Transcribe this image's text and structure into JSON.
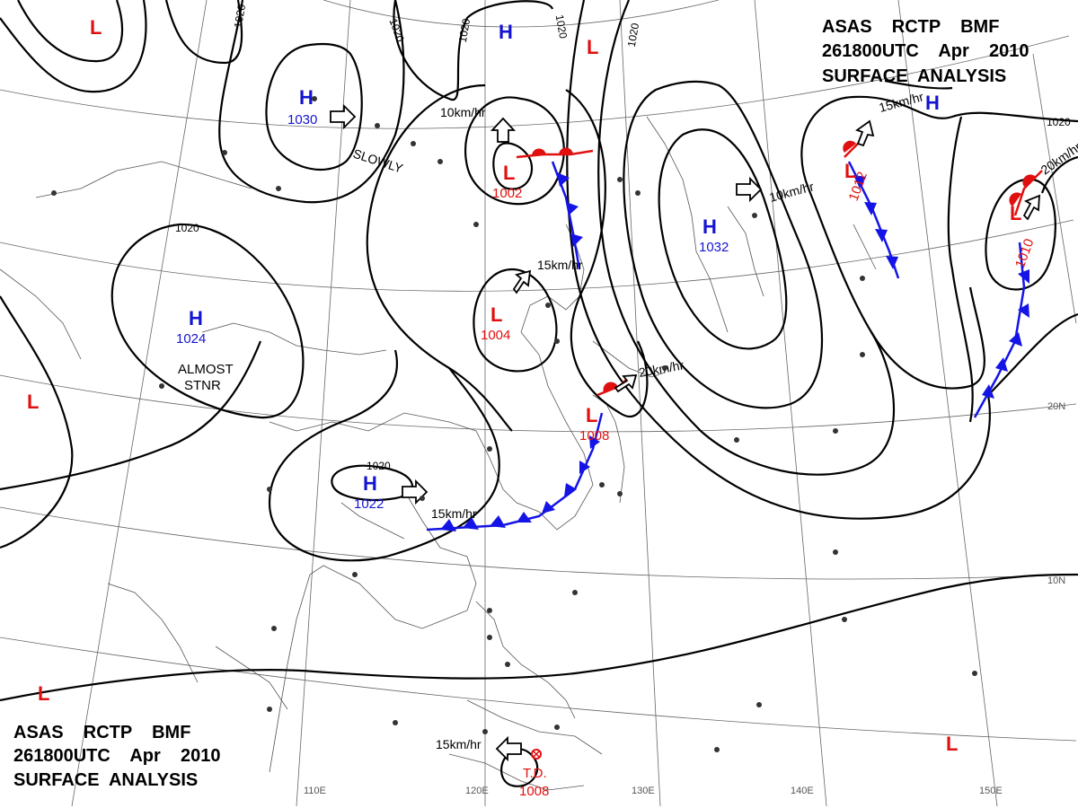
{
  "header_top": {
    "line1": "ASAS    RCTP    BMF",
    "line2": "261800UTC    Apr    2010",
    "line3": "SURFACE  ANALYSIS"
  },
  "header_bottom": {
    "line1": "ASAS    RCTP    BMF",
    "line2": "261800UTC    Apr    2010",
    "line3": "SURFACE  ANALYSIS"
  },
  "longitudes": [
    "110E",
    "120E",
    "130E",
    "140E",
    "150E"
  ],
  "latitudes": [
    "20N",
    "10N"
  ],
  "isobar_value": "1020",
  "pressure_centers": [
    {
      "type": "H",
      "value": "1030"
    },
    {
      "type": "H",
      "value": "1024"
    },
    {
      "type": "H",
      "value": "1022"
    },
    {
      "type": "H",
      "value": "1032"
    },
    {
      "type": "H",
      "value": ""
    },
    {
      "type": "H",
      "value": ""
    },
    {
      "type": "L",
      "value": "1002"
    },
    {
      "type": "L",
      "value": "1004"
    },
    {
      "type": "L",
      "value": "1008"
    },
    {
      "type": "L",
      "value": "1012"
    },
    {
      "type": "L",
      "value": "1010"
    },
    {
      "type": "L",
      "value": ""
    },
    {
      "type": "L",
      "value": ""
    },
    {
      "type": "L",
      "value": ""
    },
    {
      "type": "L",
      "value": ""
    },
    {
      "type": "L",
      "value": ""
    }
  ],
  "tropical_depression": {
    "label": "T.D.",
    "value": "1008"
  },
  "movements": [
    "SLOWLY",
    "10km/hr",
    "15km/hr",
    "10km/hr",
    "15km/hr",
    "20km/hr",
    "15km/hr",
    "20km/hr",
    "15km/hr"
  ],
  "remarks": {
    "almost": "ALMOST",
    "stnr": "STNR"
  },
  "colors": {
    "high": "#1414d2",
    "low": "#e01010",
    "cold_front": "#1414e6",
    "warm_front": "#e01010",
    "isobar": "#000000"
  }
}
